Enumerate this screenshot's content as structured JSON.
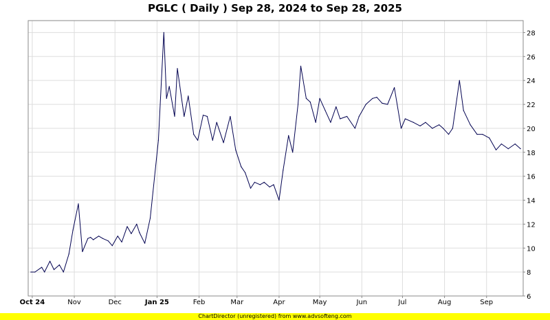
{
  "chart_data": {
    "type": "line",
    "title": "PGLC ( Daily ) Sep 28, 2024 to Sep 28, 2025",
    "xlabel": "",
    "ylabel": "",
    "ylim": [
      6,
      29
    ],
    "yticks": [
      6,
      8,
      10,
      12,
      14,
      16,
      18,
      20,
      22,
      24,
      26,
      28
    ],
    "xlim": [
      "2024-09-28",
      "2025-09-28"
    ],
    "xticks": [
      {
        "date": "2024-10-01",
        "label": "Oct 24",
        "bold": true
      },
      {
        "date": "2024-11-01",
        "label": "Nov",
        "bold": false
      },
      {
        "date": "2024-12-01",
        "label": "Dec",
        "bold": false
      },
      {
        "date": "2025-01-01",
        "label": "Jan 25",
        "bold": true
      },
      {
        "date": "2025-02-01",
        "label": "Feb",
        "bold": false
      },
      {
        "date": "2025-03-01",
        "label": "Mar",
        "bold": false
      },
      {
        "date": "2025-04-01",
        "label": "Apr",
        "bold": false
      },
      {
        "date": "2025-05-01",
        "label": "May",
        "bold": false
      },
      {
        "date": "2025-06-01",
        "label": "Jun",
        "bold": false
      },
      {
        "date": "2025-07-01",
        "label": "Jul",
        "bold": false
      },
      {
        "date": "2025-08-01",
        "label": "Aug",
        "bold": false
      },
      {
        "date": "2025-09-01",
        "label": "Sep",
        "bold": false
      }
    ],
    "grid": true,
    "line_color": "#000050",
    "series": [
      {
        "name": "",
        "x": [
          "2024-09-30",
          "2024-10-03",
          "2024-10-08",
          "2024-10-10",
          "2024-10-14",
          "2024-10-17",
          "2024-10-21",
          "2024-10-24",
          "2024-10-28",
          "2024-10-31",
          "2024-11-04",
          "2024-11-07",
          "2024-11-11",
          "2024-11-13",
          "2024-11-15",
          "2024-11-19",
          "2024-11-22",
          "2024-11-26",
          "2024-11-29",
          "2024-12-03",
          "2024-12-06",
          "2024-12-10",
          "2024-12-13",
          "2024-12-17",
          "2024-12-19",
          "2024-12-23",
          "2024-12-27",
          "2025-01-02",
          "2025-01-06",
          "2025-01-08",
          "2025-01-10",
          "2025-01-14",
          "2025-01-16",
          "2025-01-21",
          "2025-01-24",
          "2025-01-28",
          "2025-01-31",
          "2025-02-04",
          "2025-02-07",
          "2025-02-11",
          "2025-02-14",
          "2025-02-19",
          "2025-02-24",
          "2025-02-28",
          "2025-03-04",
          "2025-03-07",
          "2025-03-11",
          "2025-03-14",
          "2025-03-18",
          "2025-03-21",
          "2025-03-25",
          "2025-03-28",
          "2025-04-01",
          "2025-04-04",
          "2025-04-08",
          "2025-04-11",
          "2025-04-15",
          "2025-04-17",
          "2025-04-21",
          "2025-04-24",
          "2025-04-28",
          "2025-05-01",
          "2025-05-05",
          "2025-05-09",
          "2025-05-13",
          "2025-05-16",
          "2025-05-21",
          "2025-05-27",
          "2025-05-30",
          "2025-06-04",
          "2025-06-09",
          "2025-06-12",
          "2025-06-16",
          "2025-06-20",
          "2025-06-25",
          "2025-06-30",
          "2025-07-03",
          "2025-07-09",
          "2025-07-14",
          "2025-07-18",
          "2025-07-23",
          "2025-07-28",
          "2025-07-31",
          "2025-08-04",
          "2025-08-07",
          "2025-08-12",
          "2025-08-15",
          "2025-08-20",
          "2025-08-25",
          "2025-08-29",
          "2025-09-03",
          "2025-09-08",
          "2025-09-12",
          "2025-09-17",
          "2025-09-22",
          "2025-09-26"
        ],
        "values": [
          8.0,
          8.0,
          8.4,
          8.0,
          8.9,
          8.2,
          8.6,
          8.0,
          9.5,
          11.5,
          13.7,
          9.7,
          10.8,
          10.9,
          10.7,
          11.0,
          10.8,
          10.6,
          10.2,
          11.0,
          10.5,
          11.8,
          11.2,
          12.0,
          11.3,
          10.4,
          12.5,
          19.0,
          28.0,
          22.5,
          23.5,
          21.0,
          25.0,
          21.0,
          22.7,
          19.5,
          19.0,
          21.1,
          21.0,
          19.0,
          20.5,
          18.8,
          21.0,
          18.2,
          16.8,
          16.3,
          15.0,
          15.5,
          15.3,
          15.5,
          15.1,
          15.3,
          14.0,
          16.5,
          19.4,
          18.0,
          22.0,
          25.2,
          22.5,
          22.2,
          20.5,
          22.5,
          21.5,
          20.5,
          21.8,
          20.8,
          21.0,
          20.0,
          21.0,
          22.0,
          22.5,
          22.6,
          22.1,
          22.0,
          23.4,
          20.0,
          20.8,
          20.5,
          20.2,
          20.5,
          20.0,
          20.3,
          20.0,
          19.5,
          20.0,
          24.0,
          21.5,
          20.3,
          19.5,
          19.5,
          19.2,
          18.2,
          18.7,
          18.3,
          18.7,
          18.3
        ]
      }
    ]
  },
  "footer": {
    "text": "ChartDirector (unregistered) from www.advsofteng.com",
    "color": "#ffff00"
  }
}
